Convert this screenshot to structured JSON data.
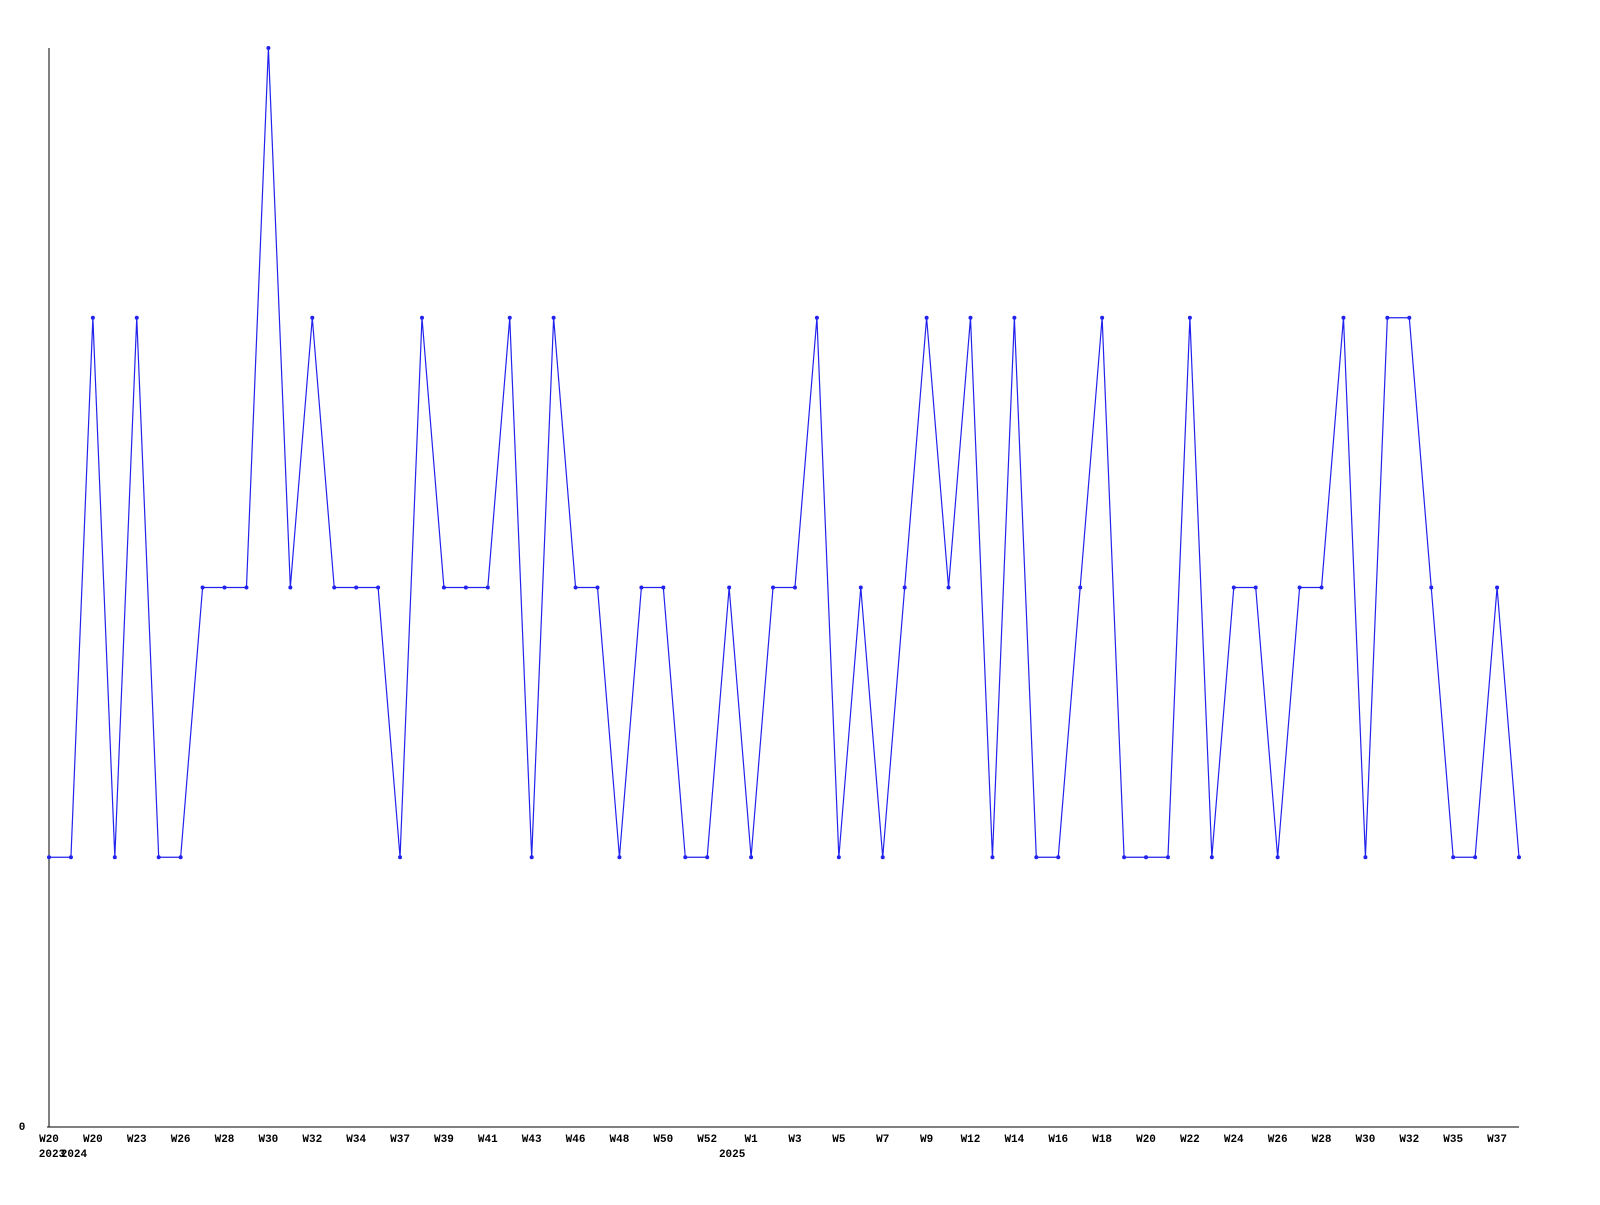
{
  "chart_data": {
    "type": "line",
    "categories": [
      "W20",
      null,
      "W20",
      null,
      "W23",
      null,
      "W26",
      null,
      "W28",
      null,
      "W30",
      null,
      "W32",
      null,
      "W34",
      null,
      "W37",
      null,
      "W39",
      null,
      "W41",
      null,
      "W43",
      null,
      "W46",
      null,
      "W48",
      null,
      "W50",
      null,
      "W52",
      null,
      "W1",
      null,
      "W3",
      null,
      "W5",
      null,
      "W7",
      null,
      "W9",
      null,
      "W12",
      null,
      "W14",
      null,
      "W16",
      null,
      "W18",
      null,
      "W20",
      null,
      "W22",
      null,
      "W24",
      null,
      "W26",
      null,
      "W28",
      null,
      "W30",
      null,
      "W32",
      null,
      "W35",
      null,
      "W37",
      null
    ],
    "year_labels": [
      "2023",
      "2024",
      null,
      null,
      null,
      null,
      null,
      null,
      null,
      null,
      null,
      null,
      null,
      null,
      null,
      null,
      null,
      null,
      null,
      null,
      null,
      null,
      null,
      null,
      null,
      null,
      null,
      null,
      null,
      null,
      null,
      "2025",
      null,
      null,
      null,
      null,
      null,
      null,
      null,
      null,
      null,
      null,
      null,
      null,
      null,
      null,
      null,
      null,
      null,
      null,
      null,
      null,
      null,
      null,
      null,
      null,
      null,
      null,
      null,
      null,
      null,
      null,
      null,
      null,
      null,
      null,
      null,
      null
    ],
    "values": [
      1,
      1,
      3,
      1,
      3,
      1,
      1,
      2,
      2,
      2,
      4,
      2,
      3,
      2,
      2,
      2,
      1,
      3,
      2,
      2,
      2,
      3,
      1,
      3,
      2,
      2,
      1,
      2,
      2,
      1,
      1,
      2,
      1,
      2,
      2,
      3,
      1,
      2,
      1,
      2,
      3,
      2,
      3,
      1,
      3,
      1,
      1,
      2,
      3,
      1,
      1,
      1,
      3,
      1,
      2,
      2,
      1,
      2,
      2,
      3,
      1,
      3,
      3,
      2,
      1,
      1,
      2,
      1
    ],
    "color": "#2222ee",
    "ylim": [
      0,
      4
    ],
    "yticks": [
      0
    ]
  }
}
